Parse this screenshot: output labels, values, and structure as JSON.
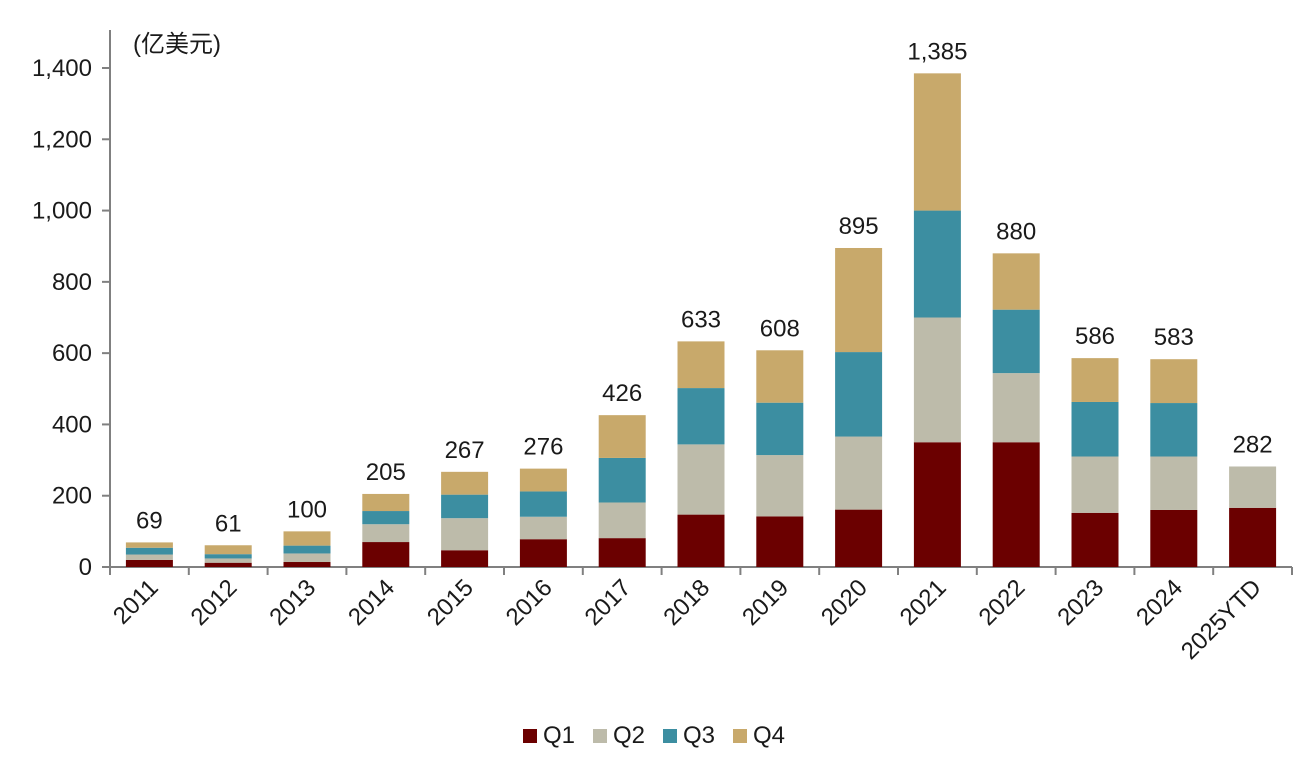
{
  "chart_data": {
    "type": "bar",
    "stacked": true,
    "unit_label": "(亿美元)",
    "title": "",
    "xlabel": "",
    "ylabel": "",
    "ylim": [
      0,
      1400
    ],
    "y_ticks": [
      0,
      200,
      400,
      600,
      800,
      1000,
      1200,
      1400
    ],
    "y_tick_labels": [
      "0",
      "200",
      "400",
      "600",
      "800",
      "1,000",
      "1,200",
      "1,400"
    ],
    "categories": [
      "2011",
      "2012",
      "2013",
      "2014",
      "2015",
      "2016",
      "2017",
      "2018",
      "2019",
      "2020",
      "2021",
      "2022",
      "2023",
      "2024",
      "2025YTD"
    ],
    "series": [
      {
        "name": "Q1",
        "color": "#6b0000",
        "values": [
          20,
          12,
          14,
          70,
          47,
          78,
          81,
          147,
          142,
          161,
          350,
          350,
          152,
          160,
          166
        ]
      },
      {
        "name": "Q2",
        "color": "#bdbbaa",
        "values": [
          15,
          12,
          24,
          50,
          90,
          63,
          100,
          197,
          172,
          205,
          350,
          194,
          158,
          150,
          116
        ]
      },
      {
        "name": "Q3",
        "color": "#3c8ea1",
        "values": [
          19,
          12,
          22,
          37,
          66,
          71,
          125,
          158,
          147,
          237,
          300,
          178,
          153,
          150,
          0
        ]
      },
      {
        "name": "Q4",
        "color": "#c8a96b",
        "values": [
          15,
          25,
          40,
          48,
          64,
          64,
          120,
          131,
          147,
          292,
          385,
          158,
          123,
          123,
          0
        ]
      }
    ],
    "totals": [
      69,
      61,
      100,
      205,
      267,
      276,
      426,
      633,
      608,
      895,
      1385,
      880,
      586,
      583,
      282
    ],
    "total_labels": [
      "69",
      "61",
      "100",
      "205",
      "267",
      "276",
      "426",
      "633",
      "608",
      "895",
      "1,385",
      "880",
      "586",
      "583",
      "282"
    ],
    "legend": {
      "position": "bottom-center",
      "entries": [
        "Q1",
        "Q2",
        "Q3",
        "Q4"
      ]
    },
    "grid": false
  }
}
